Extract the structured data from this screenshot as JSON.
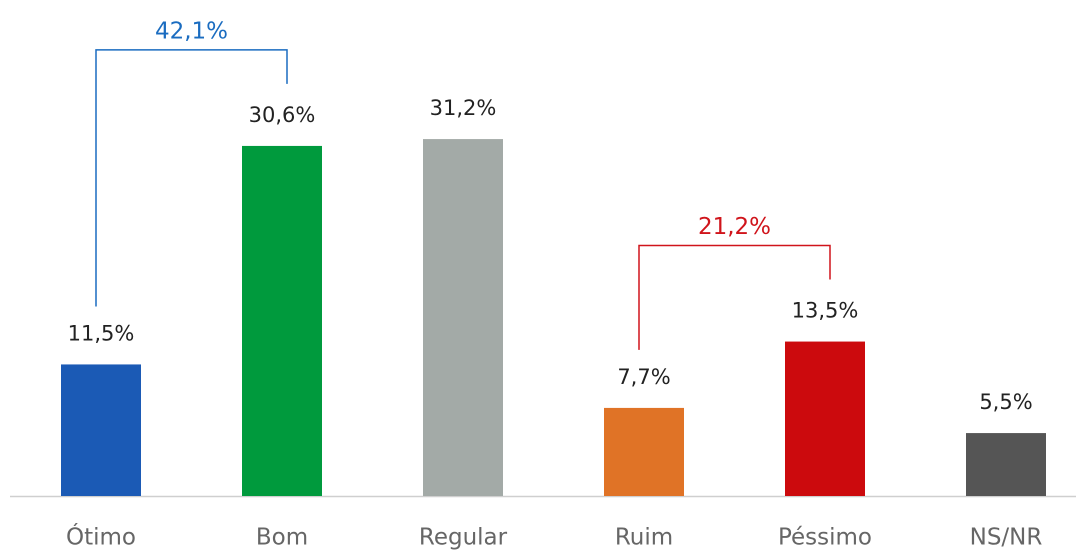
{
  "chart_data": {
    "type": "bar",
    "categories": [
      "Ótimo",
      "Bom",
      "Regular",
      "Ruim",
      "Péssimo",
      "NS/NR"
    ],
    "values": [
      11.5,
      30.6,
      31.2,
      7.7,
      13.5,
      5.5
    ],
    "value_labels": [
      "11,5%",
      "30,6%",
      "31,2%",
      "7,7%",
      "13,5%",
      "5,5%"
    ],
    "colors": [
      "#1b5ab5",
      "#009a3d",
      "#a3aaa7",
      "#e07326",
      "#cc0a0d",
      "#555555"
    ],
    "annotations": [
      {
        "label": "42,1%",
        "from": "Ótimo",
        "to": "Bom",
        "color": "#1a6cc0"
      },
      {
        "label": "21,2%",
        "from": "Ruim",
        "to": "Péssimo",
        "color": "#d0141b"
      }
    ]
  }
}
